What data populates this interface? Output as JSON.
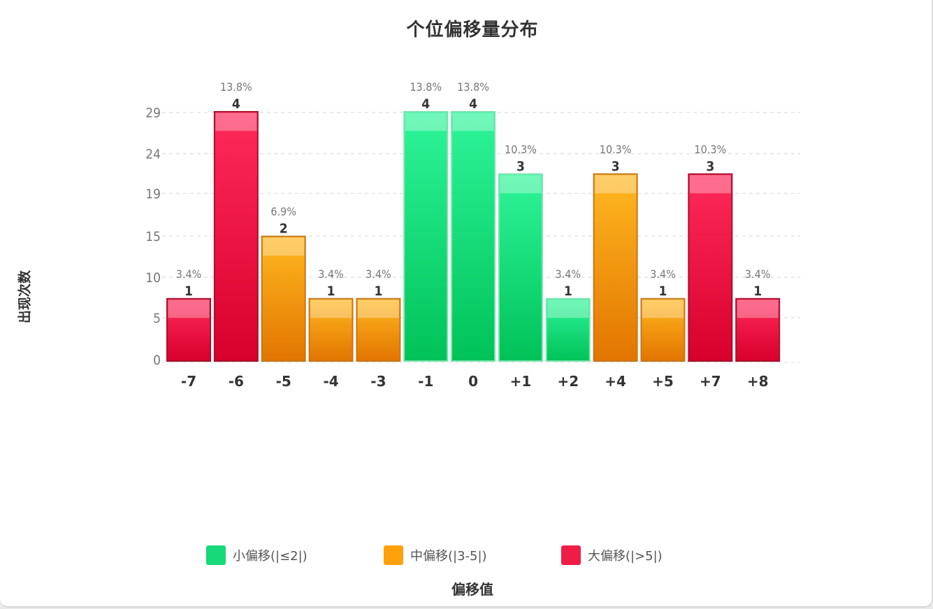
{
  "chart_data": {
    "type": "bar",
    "title": "个位偏移量分布",
    "xlabel": "偏移值",
    "ylabel": "出现次数",
    "categories": [
      "-7",
      "-6",
      "-5",
      "-4",
      "-3",
      "-1",
      "0",
      "+1",
      "+2",
      "+4",
      "+5",
      "+7",
      "+8"
    ],
    "values": [
      1,
      4,
      2,
      1,
      1,
      4,
      4,
      3,
      1,
      3,
      1,
      3,
      1
    ],
    "percent_labels": [
      "3.4%",
      "13.8%",
      "6.9%",
      "3.4%",
      "3.4%",
      "13.8%",
      "13.8%",
      "10.3%",
      "3.4%",
      "10.3%",
      "3.4%",
      "10.3%",
      "3.4%"
    ],
    "groups": [
      "large",
      "large",
      "medium",
      "medium",
      "medium",
      "small",
      "small",
      "small",
      "small",
      "medium",
      "medium",
      "large",
      "large"
    ],
    "y_ticks": [
      "0",
      "5",
      "10",
      "15",
      "19",
      "24",
      "29"
    ],
    "ylim": [
      0,
      4
    ],
    "grid": true,
    "legend_position": "bottom",
    "legend": [
      {
        "key": "small",
        "label": "小偏移(|≤2|)",
        "color": "#17d97a"
      },
      {
        "key": "medium",
        "label": "中偏移(|3-5|)",
        "color": "#ffa10a"
      },
      {
        "key": "large",
        "label": "大偏移(|>5|)",
        "color": "#f01c48"
      }
    ]
  },
  "colors": {
    "small_top": "#2ef59a",
    "small_bottom": "#00c258",
    "small_border": "#7fe3b1",
    "medium_top": "#ffb820",
    "medium_bottom": "#e27500",
    "medium_border": "#c5771c",
    "large_top": "#ff2a5a",
    "large_bottom": "#d8002c",
    "large_border": "#a8102c"
  }
}
